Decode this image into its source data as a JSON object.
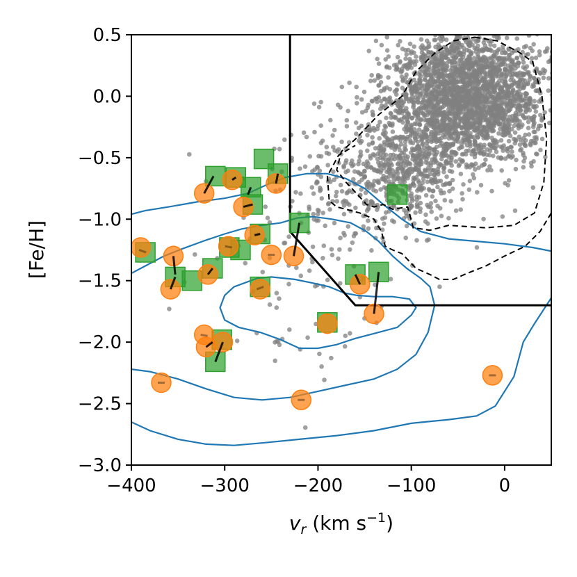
{
  "chart_data": {
    "type": "scatter",
    "title": "",
    "xlabel": "v_r (km s⁻¹)",
    "xlabel_parts": {
      "var": "v",
      "sub": "r",
      "unit_open": " (km s",
      "sup": "−1",
      "unit_close": ")"
    },
    "ylabel": "[Fe/H]",
    "xlim": [
      -400,
      50
    ],
    "ylim": [
      -3.0,
      0.5
    ],
    "xticks": [
      -400,
      -300,
      -200,
      -100,
      0
    ],
    "xtick_labels": [
      "−400",
      "−300",
      "−200",
      "−100",
      "0"
    ],
    "yticks": [
      0.5,
      0.0,
      -0.5,
      -1.0,
      -1.5,
      -2.0,
      -2.5,
      -3.0
    ],
    "ytick_labels": [
      "0.5",
      "0.0",
      "−0.5",
      "−1.0",
      "−1.5",
      "−2.0",
      "−2.5",
      "−3.0"
    ],
    "grid": false,
    "colors": {
      "gray_points": "#808080",
      "orange_points": "#ff7f0e",
      "green_points": "#2ca02c",
      "contours": "#1f77b4",
      "selection_boundary": "#000000",
      "connectors": "#000000"
    },
    "selection_boundary": [
      [
        -230,
        0.5
      ],
      [
        -230,
        -1.1
      ],
      [
        -160,
        -1.7
      ],
      [
        50,
        -1.7
      ]
    ],
    "dashed_contours": [
      {
        "points": [
          [
            -32,
            0.48
          ],
          [
            -8,
            0.45
          ],
          [
            15,
            0.36
          ],
          [
            30,
            0.28
          ],
          [
            40,
            0.0
          ],
          [
            45,
            -0.35
          ],
          [
            42,
            -0.7
          ],
          [
            32,
            -0.95
          ],
          [
            10,
            -1.05
          ],
          [
            -20,
            -1.07
          ],
          [
            -60,
            -1.05
          ],
          [
            -80,
            -1.09
          ],
          [
            -98,
            -1.07
          ],
          [
            -104,
            -0.9
          ],
          [
            -120,
            -0.92
          ],
          [
            -130,
            -0.88
          ],
          [
            -140,
            -0.9
          ],
          [
            -148,
            -0.88
          ],
          [
            -160,
            -0.78
          ],
          [
            -170,
            -0.7
          ],
          [
            -180,
            -0.6
          ],
          [
            -175,
            -0.45
          ],
          [
            -160,
            -0.35
          ],
          [
            -135,
            -0.15
          ],
          [
            -110,
            0.0
          ],
          [
            -95,
            0.2
          ],
          [
            -75,
            0.35
          ],
          [
            -55,
            0.45
          ],
          [
            -32,
            0.48
          ]
        ]
      },
      {
        "points": [
          [
            50,
            -0.95
          ],
          [
            38,
            -1.1
          ],
          [
            22,
            -1.22
          ],
          [
            0,
            -1.3
          ],
          [
            -20,
            -1.38
          ],
          [
            -40,
            -1.44
          ],
          [
            -55,
            -1.49
          ],
          [
            -70,
            -1.49
          ],
          [
            -80,
            -1.45
          ],
          [
            -95,
            -1.4
          ],
          [
            -110,
            -1.28
          ],
          [
            -120,
            -1.25
          ],
          [
            -128,
            -1.22
          ],
          [
            -132,
            -1.1
          ],
          [
            -140,
            -1.0
          ],
          [
            -155,
            -0.95
          ],
          [
            -170,
            -0.92
          ],
          [
            -180,
            -0.9
          ],
          [
            -188,
            -0.85
          ],
          [
            -190,
            -0.65
          ],
          [
            -178,
            -0.48
          ],
          [
            -160,
            -0.4
          ]
        ]
      }
    ],
    "contours": [
      {
        "points": [
          [
            -172,
            -1.6
          ],
          [
            -188,
            -1.55
          ],
          [
            -205,
            -1.52
          ],
          [
            -225,
            -1.49
          ],
          [
            -250,
            -1.47
          ],
          [
            -265,
            -1.48
          ],
          [
            -290,
            -1.55
          ],
          [
            -300,
            -1.62
          ],
          [
            -305,
            -1.72
          ],
          [
            -300,
            -1.82
          ],
          [
            -285,
            -1.88
          ],
          [
            -262,
            -1.92
          ],
          [
            -240,
            -1.98
          ],
          [
            -220,
            -2.05
          ],
          [
            -200,
            -2.05
          ],
          [
            -180,
            -2.02
          ],
          [
            -160,
            -1.97
          ],
          [
            -140,
            -1.93
          ],
          [
            -115,
            -1.88
          ],
          [
            -100,
            -1.78
          ],
          [
            -95,
            -1.72
          ],
          [
            -102,
            -1.65
          ],
          [
            -120,
            -1.63
          ],
          [
            -140,
            -1.63
          ],
          [
            -158,
            -1.62
          ],
          [
            -172,
            -1.6
          ]
        ]
      },
      {
        "points": [
          [
            -400,
            -1.44
          ],
          [
            -385,
            -1.38
          ],
          [
            -365,
            -1.3
          ],
          [
            -345,
            -1.24
          ],
          [
            -320,
            -1.17
          ],
          [
            -300,
            -1.12
          ],
          [
            -282,
            -1.08
          ],
          [
            -260,
            -1.05
          ],
          [
            -240,
            -1.03
          ],
          [
            -222,
            -0.99
          ],
          [
            -205,
            -0.98
          ],
          [
            -185,
            -1.0
          ],
          [
            -165,
            -1.03
          ],
          [
            -148,
            -1.1
          ],
          [
            -135,
            -1.18
          ],
          [
            -120,
            -1.3
          ],
          [
            -105,
            -1.4
          ],
          [
            -90,
            -1.48
          ],
          [
            -80,
            -1.55
          ],
          [
            -75,
            -1.7
          ],
          [
            -82,
            -1.92
          ],
          [
            -95,
            -2.1
          ],
          [
            -115,
            -2.22
          ],
          [
            -140,
            -2.3
          ],
          [
            -170,
            -2.35
          ],
          [
            -200,
            -2.4
          ],
          [
            -230,
            -2.45
          ],
          [
            -260,
            -2.47
          ],
          [
            -290,
            -2.45
          ],
          [
            -320,
            -2.38
          ],
          [
            -350,
            -2.3
          ],
          [
            -380,
            -2.24
          ],
          [
            -400,
            -2.22
          ]
        ]
      },
      {
        "points": [
          [
            -400,
            -0.96
          ],
          [
            -385,
            -0.93
          ],
          [
            -360,
            -0.9
          ],
          [
            -330,
            -0.86
          ],
          [
            -300,
            -0.83
          ],
          [
            -275,
            -0.79
          ],
          [
            -255,
            -0.72
          ],
          [
            -235,
            -0.66
          ],
          [
            -212,
            -0.63
          ],
          [
            -190,
            -0.63
          ],
          [
            -170,
            -0.67
          ],
          [
            -150,
            -0.75
          ],
          [
            -130,
            -0.88
          ],
          [
            -110,
            -1.0
          ],
          [
            -90,
            -1.1
          ],
          [
            -60,
            -1.16
          ],
          [
            -30,
            -1.18
          ],
          [
            0,
            -1.2
          ],
          [
            30,
            -1.23
          ],
          [
            50,
            -1.26
          ]
        ]
      },
      {
        "points": [
          [
            -400,
            -2.65
          ],
          [
            -380,
            -2.72
          ],
          [
            -350,
            -2.79
          ],
          [
            -320,
            -2.83
          ],
          [
            -290,
            -2.84
          ],
          [
            -260,
            -2.82
          ],
          [
            -220,
            -2.79
          ],
          [
            -180,
            -2.76
          ],
          [
            -140,
            -2.72
          ],
          [
            -100,
            -2.66
          ],
          [
            -60,
            -2.63
          ],
          [
            -30,
            -2.6
          ],
          [
            -10,
            -2.52
          ],
          [
            10,
            -2.28
          ],
          [
            20,
            -2.0
          ],
          [
            32,
            -1.85
          ],
          [
            50,
            -1.64
          ]
        ]
      }
    ],
    "series": [
      {
        "marker": "square",
        "color": "#2ca02c",
        "points": [
          [
            -385,
            -1.27
          ],
          [
            -353,
            -1.47
          ],
          [
            -335,
            -1.5
          ],
          [
            -313,
            -1.4
          ],
          [
            -295,
            -1.23
          ],
          [
            -310,
            -2.16
          ],
          [
            -303,
            -1.98
          ],
          [
            -310,
            -0.65
          ],
          [
            -288,
            -0.66
          ],
          [
            -272,
            -0.74
          ],
          [
            -270,
            -0.88
          ],
          [
            -262,
            -1.12
          ],
          [
            -283,
            -1.25
          ],
          [
            -262,
            -1.55
          ],
          [
            -258,
            -0.51
          ],
          [
            -243,
            -0.63
          ],
          [
            -220,
            -1.03
          ],
          [
            -190,
            -1.84
          ],
          [
            -160,
            -1.45
          ],
          [
            -135,
            -1.43
          ],
          [
            -115,
            -0.8
          ]
        ]
      },
      {
        "marker": "circle",
        "color": "#ff7f0e",
        "points": [
          [
            -390,
            -1.23
          ],
          [
            -368,
            -2.33
          ],
          [
            -358,
            -1.57
          ],
          [
            -355,
            -1.3
          ],
          [
            -322,
            -1.94
          ],
          [
            -320,
            -2.04
          ],
          [
            -322,
            -0.79
          ],
          [
            -318,
            -1.45
          ],
          [
            -302,
            -2.0
          ],
          [
            -296,
            -1.22
          ],
          [
            -292,
            -0.68
          ],
          [
            -280,
            -0.9
          ],
          [
            -268,
            -1.13
          ],
          [
            -262,
            -1.57
          ],
          [
            -250,
            -1.29
          ],
          [
            -245,
            -0.71
          ],
          [
            -226,
            -1.3
          ],
          [
            -218,
            -2.47
          ],
          [
            -190,
            -1.85
          ],
          [
            -155,
            -1.53
          ],
          [
            -140,
            -1.77
          ],
          [
            -13,
            -2.27
          ]
        ]
      }
    ],
    "connectors": [
      [
        [
          -388,
          -1.25
        ],
        [
          -387,
          -1.27
        ]
      ],
      [
        [
          -358,
          -1.57
        ],
        [
          -353,
          -1.47
        ]
      ],
      [
        [
          -355,
          -1.3
        ],
        [
          -353,
          -1.45
        ]
      ],
      [
        [
          -322,
          -1.94
        ],
        [
          -324,
          -1.95
        ]
      ],
      [
        [
          -320,
          -2.04
        ],
        [
          -313,
          -2.0
        ]
      ],
      [
        [
          -322,
          -0.79
        ],
        [
          -312,
          -0.65
        ]
      ],
      [
        [
          -318,
          -1.45
        ],
        [
          -313,
          -1.4
        ]
      ],
      [
        [
          -302,
          -2.0
        ],
        [
          -310,
          -2.16
        ]
      ],
      [
        [
          -296,
          -1.22
        ],
        [
          -295,
          -1.23
        ]
      ],
      [
        [
          -292,
          -0.68
        ],
        [
          -288,
          -0.66
        ]
      ],
      [
        [
          -280,
          -0.9
        ],
        [
          -270,
          -0.88
        ]
      ],
      [
        [
          -275,
          -0.8
        ],
        [
          -272,
          -0.74
        ]
      ],
      [
        [
          -268,
          -1.13
        ],
        [
          -262,
          -1.12
        ]
      ],
      [
        [
          -262,
          -1.57
        ],
        [
          -262,
          -1.55
        ]
      ],
      [
        [
          -250,
          -1.29
        ],
        [
          -250,
          -1.29
        ]
      ],
      [
        [
          -245,
          -0.71
        ],
        [
          -243,
          -0.63
        ]
      ],
      [
        [
          -226,
          -1.3
        ],
        [
          -220,
          -1.03
        ]
      ],
      [
        [
          -155,
          -1.53
        ],
        [
          -160,
          -1.45
        ]
      ],
      [
        [
          -140,
          -1.77
        ],
        [
          -135,
          -1.43
        ]
      ],
      [
        [
          -368,
          -2.33
        ],
        [
          -368,
          -2.33
        ]
      ],
      [
        [
          -218,
          -2.47
        ],
        [
          -218,
          -2.47
        ]
      ],
      [
        [
          -13,
          -2.27
        ],
        [
          -13,
          -2.27
        ]
      ]
    ],
    "gray_clouds": [
      {
        "cx": -40,
        "cy": 0.0,
        "sx": 42,
        "sy": 0.28,
        "n": 2600,
        "seed": 11
      },
      {
        "cx": -110,
        "cy": -0.55,
        "sx": 35,
        "sy": 0.22,
        "n": 500,
        "seed": 23
      },
      {
        "cx": -150,
        "cy": -0.7,
        "sx": 45,
        "sy": 0.25,
        "n": 160,
        "seed": 37
      },
      {
        "cx": -200,
        "cy": -1.3,
        "sx": 60,
        "sy": 0.45,
        "n": 110,
        "seed": 53
      }
    ]
  }
}
